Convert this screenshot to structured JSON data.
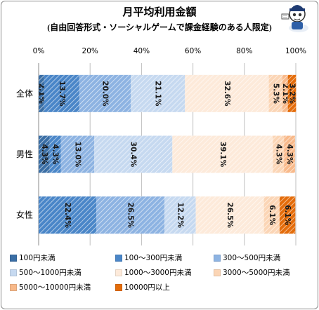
{
  "chart_data": {
    "type": "bar",
    "orientation": "horizontal",
    "stacked": true,
    "title": "月平均利用金額",
    "subtitle": "(自由回答形式・ソーシャルゲームで課金経験のある人限定)",
    "categories": [
      "全体",
      "男性",
      "女性"
    ],
    "xlim": [
      0,
      100
    ],
    "x_ticks": [
      "0%",
      "20%",
      "40%",
      "60%",
      "80%",
      "100%"
    ],
    "grid": true,
    "legend_position": "bottom",
    "series": [
      {
        "name": "100円未満",
        "color": "#3a6ea5",
        "values": [
          2.1,
          4.3,
          0
        ],
        "labels": [
          "2.1%",
          "4.3%",
          ""
        ]
      },
      {
        "name": "100～300円未満",
        "color": "#4a86c8",
        "values": [
          13.7,
          4.3,
          22.4
        ],
        "labels": [
          "13.7%",
          "4.3%",
          "22.4%"
        ]
      },
      {
        "name": "300～500円未満",
        "color": "#8db3e2",
        "values": [
          20.0,
          13.0,
          26.5
        ],
        "labels": [
          "20.0%",
          "13.0%",
          "26.5%"
        ]
      },
      {
        "name": "500～1000円未満",
        "color": "#c6d9f0",
        "values": [
          21.1,
          30.4,
          12.2
        ],
        "labels": [
          "21.1%",
          "30.4%",
          "12.2%"
        ]
      },
      {
        "name": "1000～3000円未満",
        "color": "#fdeada",
        "values": [
          32.6,
          39.1,
          26.5
        ],
        "labels": [
          "32.6%",
          "39.1%",
          "26.5%"
        ]
      },
      {
        "name": "3000～5000円未満",
        "color": "#fbd5b5",
        "values": [
          5.3,
          4.3,
          6.1
        ],
        "labels": [
          "5.3%",
          "4.3%",
          "6.1%"
        ]
      },
      {
        "name": "5000～10000円未満",
        "color": "#f8b98a",
        "values": [
          2.1,
          4.3,
          0
        ],
        "labels": [
          "2.1%",
          "4.3%",
          ""
        ]
      },
      {
        "name": "10000円以上",
        "color": "#e46c0a",
        "values": [
          3.2,
          0,
          6.1
        ],
        "labels": [
          "3.2%",
          "",
          "6.1%"
        ]
      }
    ]
  }
}
